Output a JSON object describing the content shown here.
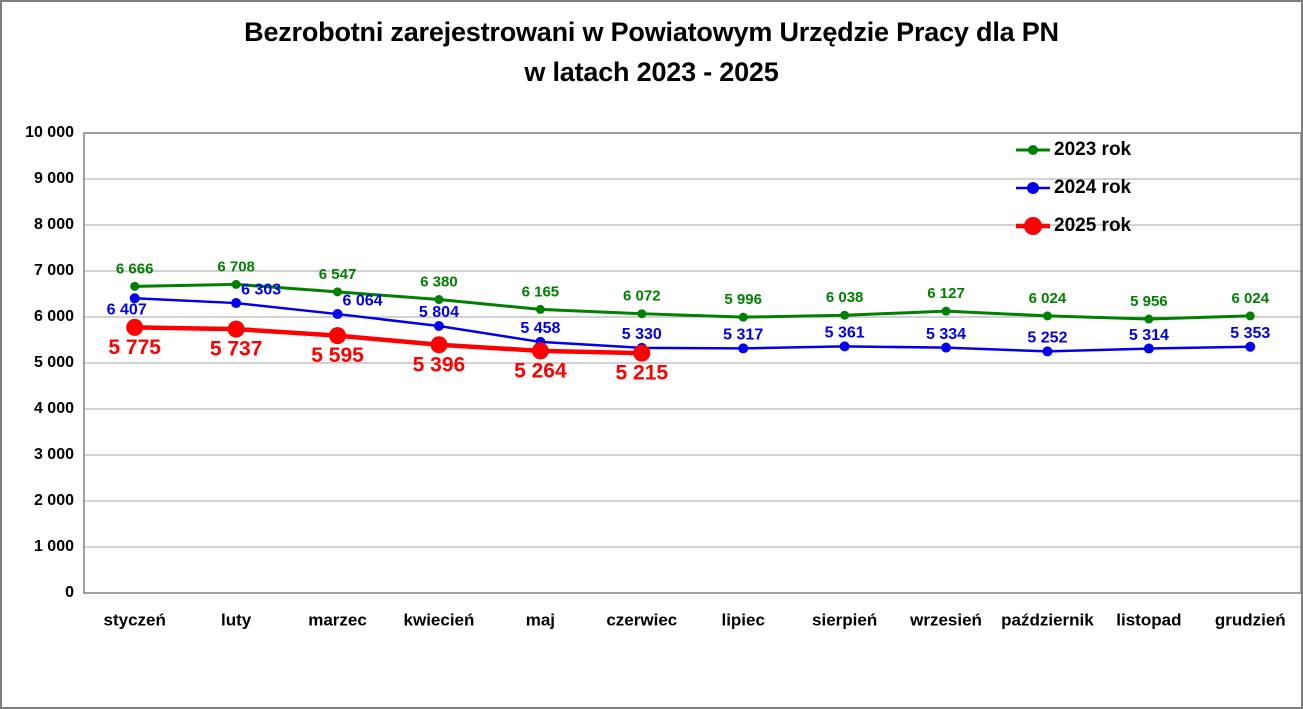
{
  "title": {
    "line1": "Bezrobotni zarejestrowani w Powiatowym Urzędzie Pracy dla PN",
    "line2": "w latach 2023 - 2025"
  },
  "chart_data": {
    "type": "line",
    "categories": [
      "styczeń",
      "luty",
      "marzec",
      "kwiecień",
      "maj",
      "czerwiec",
      "lipiec",
      "sierpień",
      "wrzesień",
      "październik",
      "listopad",
      "grudzień"
    ],
    "series": [
      {
        "name": "2023 rok",
        "color": "#008000",
        "values": [
          6666,
          6708,
          6547,
          6380,
          6165,
          6072,
          5996,
          6038,
          6127,
          6024,
          5956,
          6024
        ]
      },
      {
        "name": "2024 rok",
        "color": "#0000EE",
        "values": [
          6407,
          6303,
          6064,
          5804,
          5458,
          5330,
          5317,
          5361,
          5334,
          5252,
          5314,
          5353
        ]
      },
      {
        "name": "2025 rok",
        "color": "#FF0000",
        "values": [
          5775,
          5737,
          5595,
          5396,
          5264,
          5215
        ]
      }
    ],
    "ylim": [
      0,
      10000
    ],
    "ytick_step": 1000,
    "ytick_labels": [
      "0",
      "1 000",
      "2 000",
      "3 000",
      "4 000",
      "5 000",
      "6 000",
      "7 000",
      "8 000",
      "9 000",
      "10 000"
    ],
    "grid": true,
    "legend_position": "top-right",
    "legend_labels": [
      "2023 rok",
      "2024 rok",
      "2025 rok"
    ],
    "number_format": "space-thousands"
  },
  "colors": {
    "grid": "#A6A6A6",
    "plot_border": "#808080",
    "axis_text": "#000000",
    "background": "#FFFFFF",
    "series_2023": "#008000",
    "series_2024": "#0000EE",
    "series_2025": "#FF0000"
  }
}
